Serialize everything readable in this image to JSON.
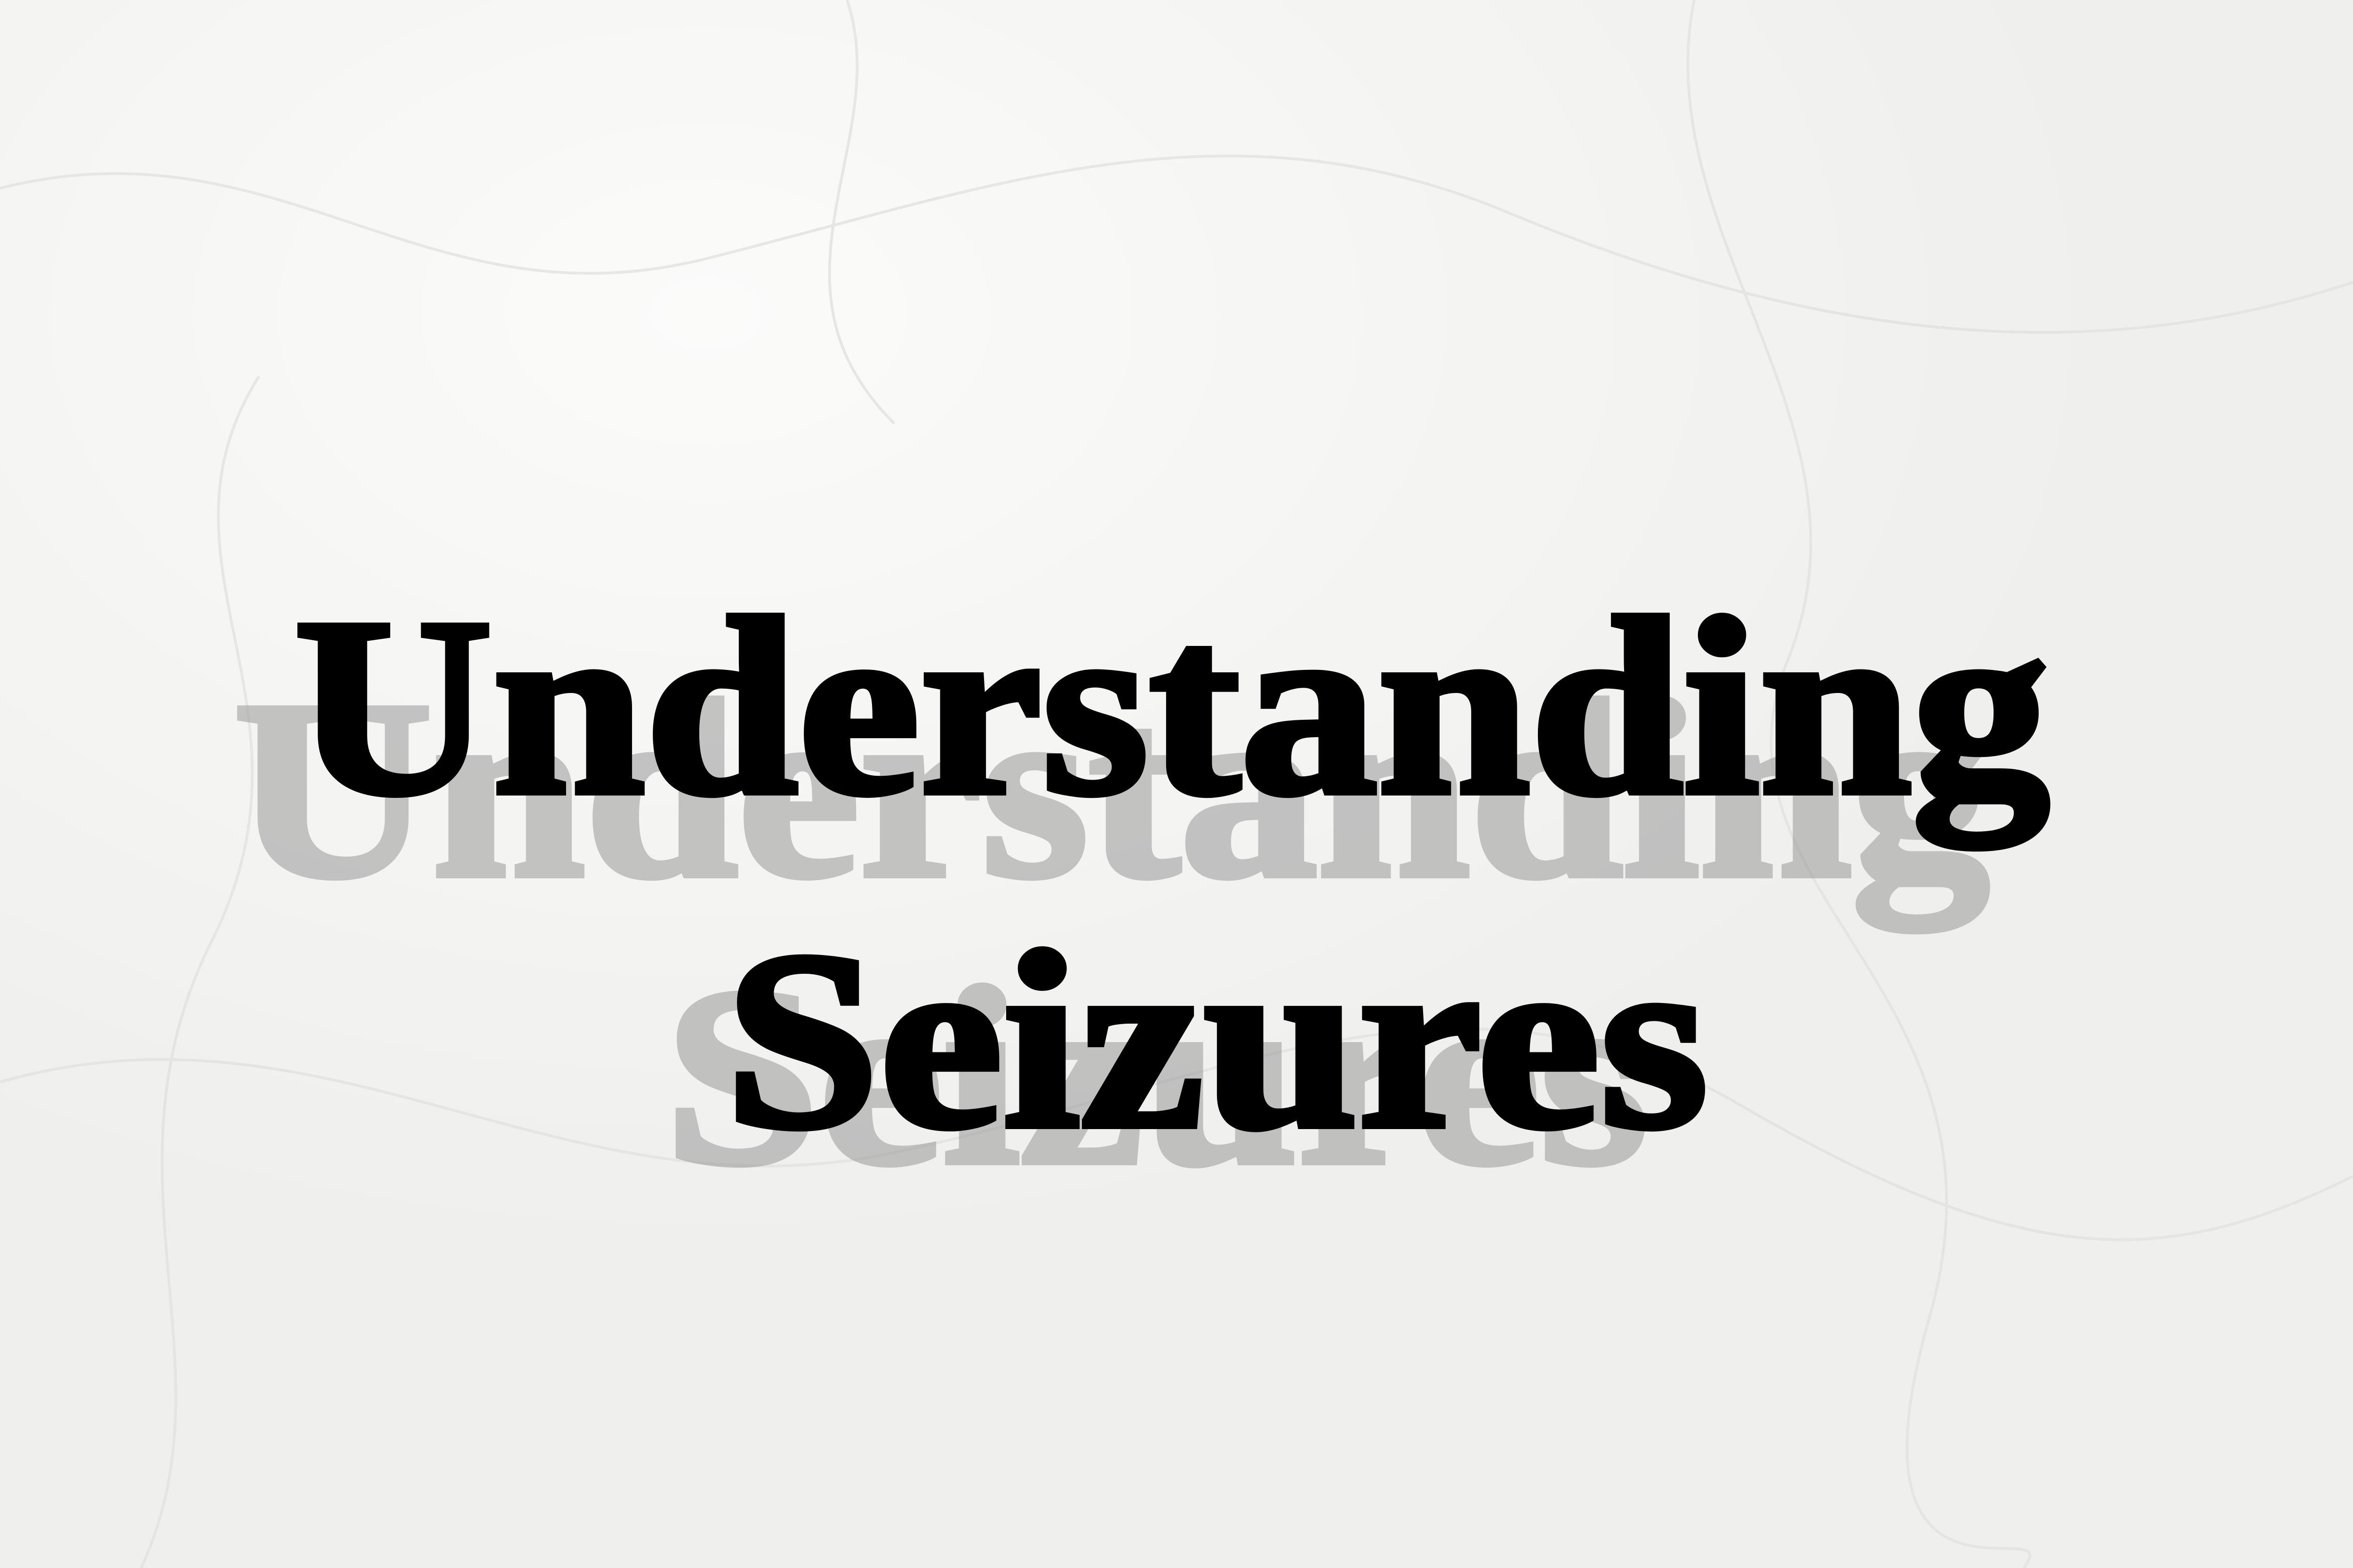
{
  "title": {
    "lines": [
      "Understanding",
      "Seizures"
    ]
  }
}
